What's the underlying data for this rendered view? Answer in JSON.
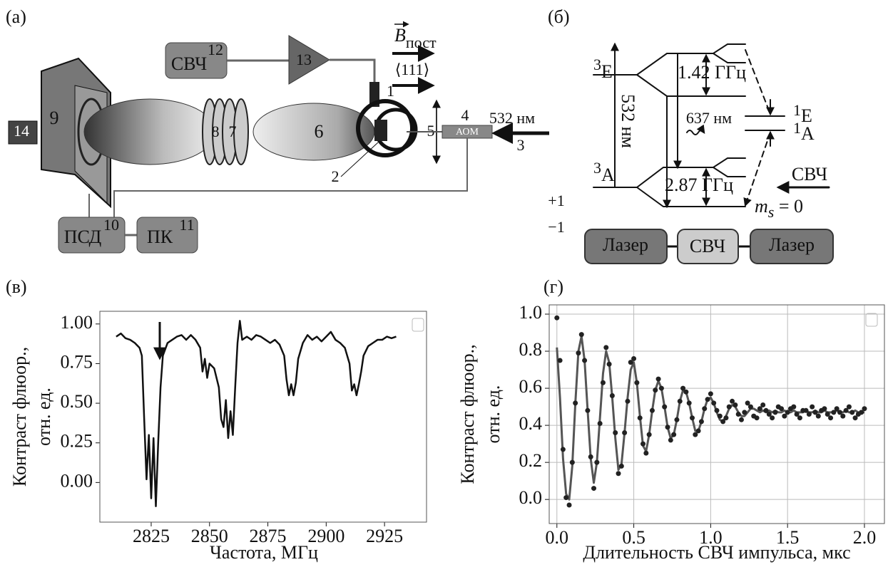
{
  "panel_a": {
    "label": "(а)",
    "mw": "СВЧ",
    "mw_num": "12",
    "amp_num": "13",
    "field": "B",
    "field_sub": "пост",
    "direction": "⟨111⟩",
    "n1": "1",
    "n2": "2",
    "n3": "3",
    "n4": "4",
    "n5": "5",
    "n6": "6",
    "n7": "7",
    "n8": "8",
    "n9": "9",
    "n14": "14",
    "aom": "АОМ",
    "laser": "532 нм",
    "psd": "ПСД",
    "n10": "10",
    "pc": "ПК",
    "n11": "11"
  },
  "panel_b": {
    "label": "(б)",
    "e3_sup": "3",
    "e3": "E",
    "a3_sup": "3",
    "a3": "A",
    "pump": "532 нм",
    "split_e": "1.42 ГГц",
    "emission": "637 нм",
    "e1_sup": "1",
    "e1": "E",
    "a1_sup": "1",
    "a1": "A",
    "split_a": "2.87 ГГц",
    "mw": "СВЧ",
    "ms": "m",
    "ms_sub": "s",
    "ms_val": " = 0",
    "plus": "+1",
    "minus": "−1",
    "seq": [
      "Лазер",
      "СВЧ",
      "Лазер"
    ]
  },
  "chart_data": [
    {
      "type": "line",
      "label": "(в)",
      "xlabel": "Частота, МГц",
      "ylabel": [
        "Контраст флюор.,",
        "отн. ед."
      ],
      "x": [
        2810,
        2812,
        2814,
        2816,
        2818,
        2820,
        2821,
        2822,
        2823,
        2824,
        2825,
        2826,
        2827,
        2828,
        2829,
        2830,
        2832,
        2834,
        2836,
        2838,
        2840,
        2842,
        2844,
        2846,
        2847,
        2848,
        2849,
        2850,
        2852,
        2854,
        2855,
        2856,
        2857,
        2858,
        2859,
        2860,
        2861,
        2862,
        2863,
        2864,
        2866,
        2868,
        2870,
        2872,
        2874,
        2876,
        2878,
        2880,
        2882,
        2883,
        2884,
        2885,
        2886,
        2887,
        2888,
        2890,
        2892,
        2894,
        2896,
        2898,
        2900,
        2902,
        2904,
        2906,
        2908,
        2910,
        2911,
        2912,
        2913,
        2914,
        2915,
        2916,
        2918,
        2920,
        2922,
        2924,
        2926,
        2928,
        2930
      ],
      "series": [
        {
          "color": "#111111",
          "mode": "line",
          "values": [
            0.92,
            0.94,
            0.91,
            0.9,
            0.88,
            0.85,
            0.8,
            0.4,
            0.02,
            0.3,
            -0.1,
            0.28,
            -0.15,
            0.25,
            0.6,
            0.8,
            0.88,
            0.9,
            0.92,
            0.93,
            0.9,
            0.93,
            0.9,
            0.85,
            0.7,
            0.78,
            0.66,
            0.75,
            0.72,
            0.6,
            0.4,
            0.35,
            0.52,
            0.28,
            0.45,
            0.3,
            0.6,
            0.88,
            1.02,
            0.9,
            0.92,
            0.9,
            0.93,
            0.92,
            0.9,
            0.88,
            0.9,
            0.87,
            0.8,
            0.65,
            0.55,
            0.62,
            0.55,
            0.63,
            0.78,
            0.88,
            0.93,
            0.9,
            0.92,
            0.89,
            0.92,
            0.95,
            0.9,
            0.88,
            0.85,
            0.75,
            0.58,
            0.62,
            0.55,
            0.62,
            0.7,
            0.8,
            0.86,
            0.88,
            0.9,
            0.9,
            0.92,
            0.91,
            0.92
          ]
        }
      ],
      "xlim": [
        2803,
        2943
      ],
      "ylim": [
        -0.25,
        1.08
      ],
      "xticks": [
        2825,
        2850,
        2875,
        2900,
        2925
      ],
      "yticks": [
        {
          "value": 0,
          "label": "0.00"
        },
        {
          "value": 0.25,
          "label": "0.25"
        },
        {
          "value": 0.5,
          "label": "0.50"
        },
        {
          "value": 0.75,
          "label": "0.75"
        },
        {
          "value": 1,
          "label": "1.00"
        }
      ],
      "grid": false
    },
    {
      "type": "scatter",
      "label": "(г)",
      "xlabel": "Длительность СВЧ импульса, мкс",
      "ylabel": [
        "Контраст флюор.,",
        "отн. ед."
      ],
      "x": [
        0,
        0.02,
        0.04,
        0.06,
        0.08,
        0.1,
        0.12,
        0.14,
        0.16,
        0.18,
        0.2,
        0.22,
        0.24,
        0.26,
        0.28,
        0.3,
        0.32,
        0.34,
        0.36,
        0.38,
        0.4,
        0.42,
        0.44,
        0.46,
        0.48,
        0.5,
        0.52,
        0.54,
        0.56,
        0.58,
        0.6,
        0.62,
        0.64,
        0.66,
        0.68,
        0.7,
        0.72,
        0.74,
        0.76,
        0.78,
        0.8,
        0.82,
        0.84,
        0.86,
        0.88,
        0.9,
        0.92,
        0.94,
        0.96,
        0.98,
        1,
        1.02,
        1.04,
        1.06,
        1.08,
        1.1,
        1.12,
        1.14,
        1.16,
        1.18,
        1.2,
        1.22,
        1.24,
        1.26,
        1.28,
        1.3,
        1.32,
        1.34,
        1.36,
        1.38,
        1.4,
        1.42,
        1.44,
        1.46,
        1.48,
        1.5,
        1.52,
        1.54,
        1.56,
        1.58,
        1.6,
        1.62,
        1.64,
        1.66,
        1.68,
        1.7,
        1.72,
        1.74,
        1.76,
        1.78,
        1.8,
        1.82,
        1.84,
        1.86,
        1.88,
        1.9,
        1.92,
        1.94,
        1.96,
        1.98,
        2
      ],
      "series": [
        {
          "color": "#222222",
          "mode": "markers",
          "values": [
            0.98,
            0.75,
            0.27,
            0.01,
            -0.03,
            0.2,
            0.52,
            0.79,
            0.89,
            0.75,
            0.48,
            0.23,
            0.06,
            0.2,
            0.41,
            0.63,
            0.82,
            0.73,
            0.56,
            0.36,
            0.14,
            0.18,
            0.36,
            0.53,
            0.74,
            0.76,
            0.63,
            0.44,
            0.3,
            0.25,
            0.35,
            0.48,
            0.59,
            0.65,
            0.6,
            0.5,
            0.39,
            0.32,
            0.35,
            0.43,
            0.53,
            0.6,
            0.58,
            0.52,
            0.44,
            0.35,
            0.37,
            0.42,
            0.49,
            0.54,
            0.57,
            0.52,
            0.48,
            0.45,
            0.42,
            0.44,
            0.5,
            0.53,
            0.51,
            0.46,
            0.43,
            0.47,
            0.52,
            0.5,
            0.45,
            0.44,
            0.49,
            0.51,
            0.48,
            0.46,
            0.44,
            0.47,
            0.5,
            0.49,
            0.45,
            0.47,
            0.49,
            0.5,
            0.46,
            0.44,
            0.48,
            0.48,
            0.46,
            0.5,
            0.47,
            0.45,
            0.48,
            0.49,
            0.46,
            0.44,
            0.47,
            0.49,
            0.47,
            0.45,
            0.48,
            0.5,
            0.47,
            0.44,
            0.46,
            0.47,
            0.49
          ]
        },
        {
          "color": "#555555",
          "mode": "line",
          "values": [
            0.82,
            0.55,
            0.22,
            0.03,
            0.0,
            0.18,
            0.52,
            0.8,
            0.88,
            0.75,
            0.48,
            0.22,
            0.09,
            0.2,
            0.44,
            0.68,
            0.8,
            0.74,
            0.55,
            0.33,
            0.16,
            0.19,
            0.36,
            0.55,
            0.7,
            0.74,
            0.63,
            0.45,
            0.29,
            0.26,
            0.35,
            0.48,
            0.59,
            0.64,
            0.6,
            0.5,
            0.39,
            0.33,
            0.35,
            0.43,
            0.53,
            0.59,
            0.58,
            0.52,
            0.44,
            0.37,
            0.37,
            0.42,
            0.49,
            0.54,
            0.55,
            0.52,
            0.47,
            0.43,
            0.42,
            0.45,
            0.49,
            0.51,
            0.5,
            0.47,
            0.45,
            0.45,
            0.47,
            0.49,
            0.49,
            0.48,
            0.47,
            0.48,
            0.47,
            0.48,
            0.47,
            0.48,
            0.47,
            0.47,
            0.48,
            0.47,
            0.47,
            0.48,
            0.47,
            0.47,
            0.47,
            0.48,
            0.47,
            0.47,
            0.48,
            0.47,
            0.47,
            0.48,
            0.47,
            0.47,
            0.47,
            0.48,
            0.47,
            0.47,
            0.48,
            0.47,
            0.47,
            0.48,
            0.47,
            0.47,
            0.47
          ]
        }
      ],
      "xlim": [
        -0.05,
        2.13
      ],
      "ylim": [
        -0.13,
        1.05
      ],
      "xticks": [
        {
          "value": 0,
          "label": "0.0"
        },
        {
          "value": 0.5,
          "label": "0.5"
        },
        {
          "value": 1,
          "label": "1.0"
        },
        {
          "value": 1.5,
          "label": "1.5"
        },
        {
          "value": 2,
          "label": "2.0"
        }
      ],
      "yticks": [
        {
          "value": 0,
          "label": "0.0"
        },
        {
          "value": 0.2,
          "label": "0.2"
        },
        {
          "value": 0.4,
          "label": "0.4"
        },
        {
          "value": 0.6,
          "label": "0.6"
        },
        {
          "value": 0.8,
          "label": "0.8"
        },
        {
          "value": 1,
          "label": "1.0"
        }
      ],
      "grid": true
    }
  ]
}
